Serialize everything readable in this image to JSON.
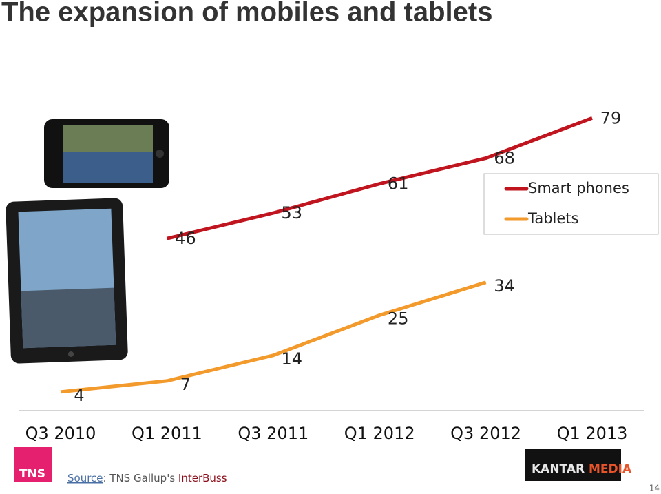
{
  "chart_data": {
    "type": "line",
    "title": "The expansion of mobiles and tablets",
    "categories": [
      "Q3 2010",
      "Q1 2011",
      "Q3 2011",
      "Q1 2012",
      "Q3 2012",
      "Q1 2013"
    ],
    "series": [
      {
        "name": "Smart phones",
        "color": "#c0141e",
        "values": [
          null,
          46,
          53,
          61,
          68,
          79
        ]
      },
      {
        "name": "Tablets",
        "color": "#f39a2c",
        "values": [
          4,
          7,
          14,
          25,
          34,
          null
        ]
      }
    ],
    "legend": "right"
  },
  "footer": {
    "source_link": "Source",
    "source_text": ": TNS Gallup's ",
    "source_highlight": "InterBuss",
    "logo_left": "TNS",
    "logo_right": [
      "KANTAR",
      "MEDIA"
    ],
    "page_number": 14
  }
}
